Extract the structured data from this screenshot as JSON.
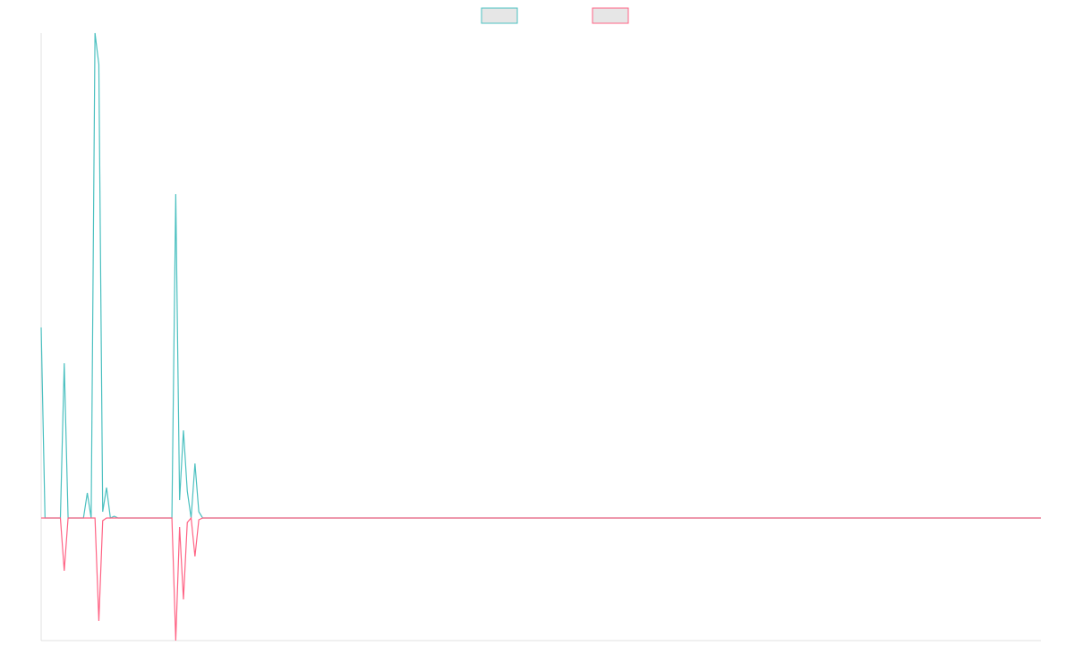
{
  "chart_data": {
    "type": "line",
    "x": [
      0,
      1,
      5,
      6,
      7,
      11,
      12,
      13,
      14,
      15,
      16,
      17,
      18,
      19,
      20,
      34,
      35,
      36,
      37,
      38,
      39,
      40,
      41,
      42,
      48,
      260
    ],
    "series": [
      {
        "color": "#4bc0c0",
        "values": [
          213,
          0,
          0,
          173,
          0,
          0,
          28,
          0,
          542,
          507,
          7,
          34,
          0,
          2,
          0,
          0,
          362,
          20,
          98,
          30,
          0,
          61,
          7,
          0,
          0,
          0
        ]
      },
      {
        "color": "#ff6384",
        "values": [
          0,
          0,
          0,
          -59,
          0,
          0,
          0,
          0,
          0,
          -115,
          -3,
          0,
          0,
          0,
          0,
          0,
          -137,
          -10,
          -91,
          -5,
          0,
          -43,
          -2,
          0,
          0,
          0
        ]
      }
    ],
    "xlim": [
      0,
      260
    ],
    "ylim": [
      -137,
      542
    ],
    "legend": "top"
  }
}
